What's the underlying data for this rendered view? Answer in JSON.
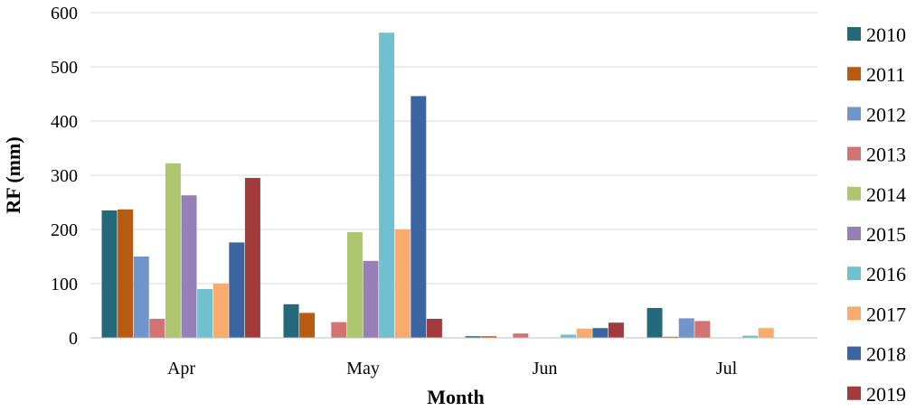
{
  "chart_data": {
    "type": "bar",
    "title": "",
    "xlabel": "Month",
    "ylabel": "RF (mm)",
    "categories": [
      "Apr",
      "May",
      "Jun",
      "Jul"
    ],
    "ylim": [
      0,
      600
    ],
    "yticks": [
      0,
      100,
      200,
      300,
      400,
      500,
      600
    ],
    "grid": true,
    "legend_position": "right",
    "series": [
      {
        "name": "2010",
        "color": "#23697a",
        "values": [
          235,
          62,
          3,
          55
        ]
      },
      {
        "name": "2011",
        "color": "#b85b12",
        "values": [
          237,
          46,
          3,
          2
        ]
      },
      {
        "name": "2012",
        "color": "#7095c8",
        "values": [
          150,
          0,
          0,
          36
        ]
      },
      {
        "name": "2013",
        "color": "#d27272",
        "values": [
          35,
          29,
          8,
          31
        ]
      },
      {
        "name": "2014",
        "color": "#adc66f",
        "values": [
          322,
          195,
          0,
          0
        ]
      },
      {
        "name": "2015",
        "color": "#9680b6",
        "values": [
          263,
          142,
          0,
          0
        ]
      },
      {
        "name": "2016",
        "color": "#71c0cf",
        "values": [
          90,
          563,
          6,
          4
        ]
      },
      {
        "name": "2017",
        "color": "#f8ab6c",
        "values": [
          100,
          200,
          17,
          18
        ]
      },
      {
        "name": "2018",
        "color": "#3a65a0",
        "values": [
          176,
          446,
          18,
          0
        ]
      },
      {
        "name": "2019",
        "color": "#a33a3c",
        "values": [
          295,
          35,
          28,
          0
        ]
      }
    ]
  }
}
